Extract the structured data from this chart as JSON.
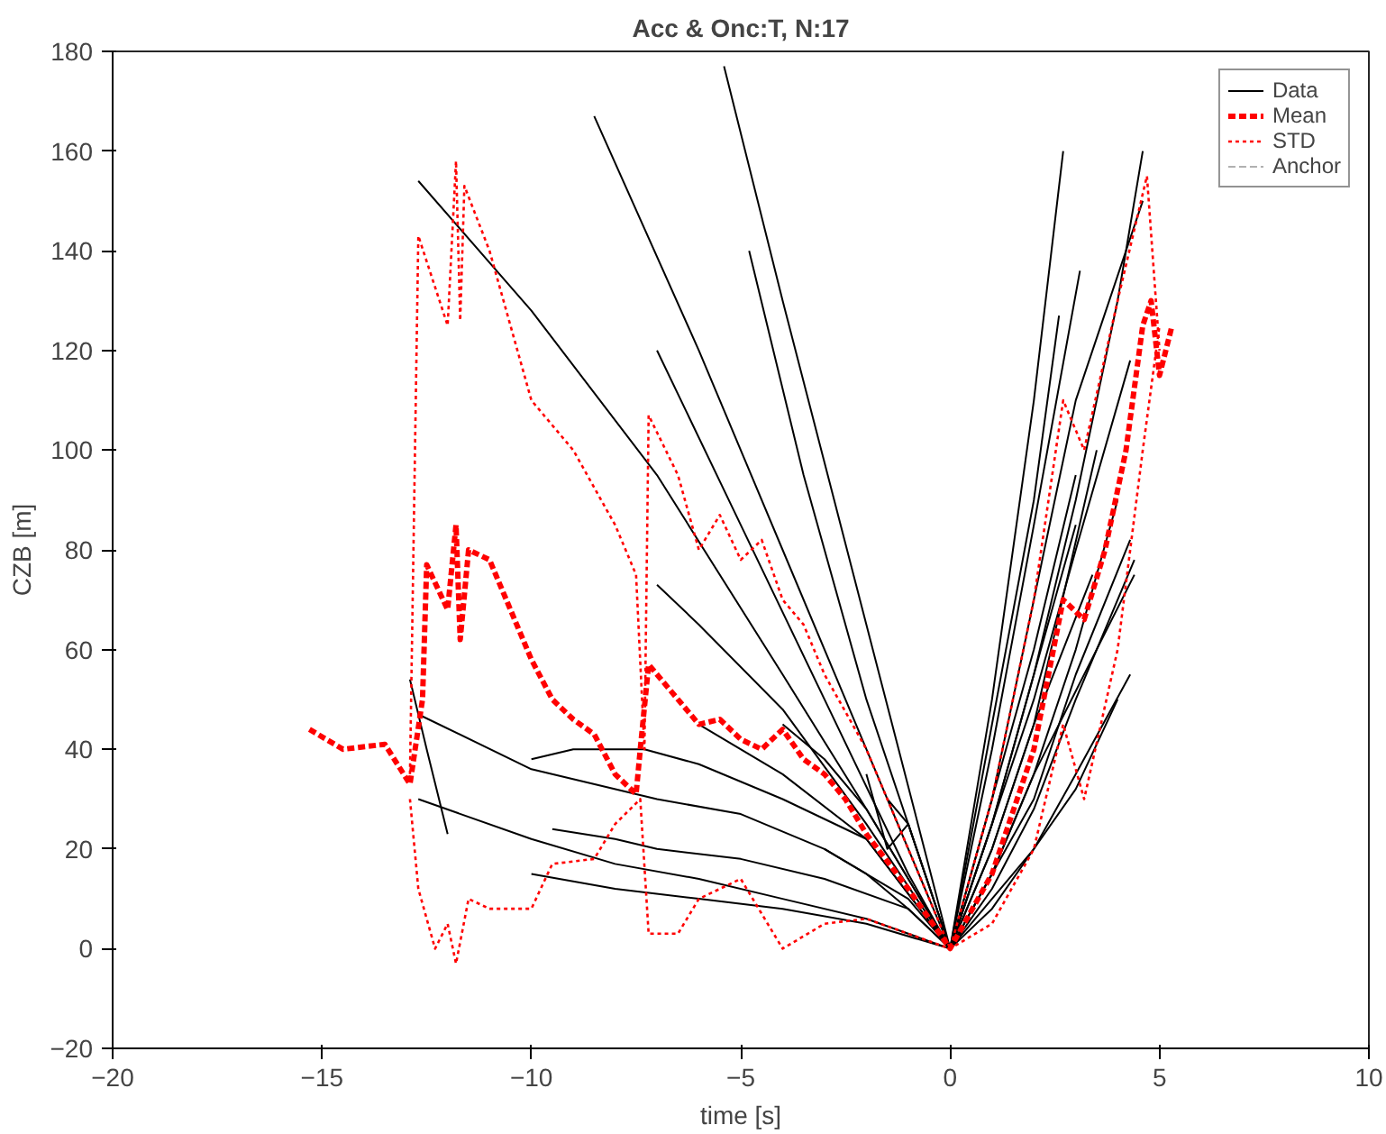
{
  "chart_data": {
    "type": "line",
    "title": "Acc & Onc:T, N:17",
    "xlabel": "time [s]",
    "ylabel": "CZB [m]",
    "xlim": [
      -20,
      10
    ],
    "xticks": [
      -20,
      -15,
      -10,
      -5,
      0,
      5,
      10
    ],
    "ylim": [
      -20,
      180
    ],
    "yticks": [
      -20,
      0,
      20,
      40,
      60,
      80,
      100,
      120,
      140,
      160,
      180
    ],
    "grid": false,
    "legend": "top right",
    "series": [
      {
        "name": "Data",
        "color": "#000000",
        "line_style": "solid",
        "x": [
          -12.7,
          -10,
          -7,
          -4,
          -2,
          0,
          1,
          2,
          2.7
        ],
        "values": [
          154,
          128,
          95,
          55,
          28,
          0,
          50,
          110,
          160
        ]
      },
      {
        "color": "#000000",
        "line_style": "solid",
        "x": [
          -8.5,
          -6,
          -4,
          -2,
          0,
          1,
          2,
          3.1
        ],
        "values": [
          167,
          120,
          80,
          40,
          0,
          40,
          85,
          136
        ]
      },
      {
        "color": "#000000",
        "line_style": "solid",
        "x": [
          -5.4,
          -4,
          -2,
          0,
          1,
          2,
          3,
          4,
          4.6
        ],
        "values": [
          177,
          130,
          65,
          0,
          25,
          55,
          90,
          130,
          160
        ]
      },
      {
        "color": "#000000",
        "line_style": "solid",
        "x": [
          -4.8,
          -3.5,
          -2,
          0,
          1,
          2,
          2.6
        ],
        "values": [
          140,
          95,
          50,
          0,
          45,
          90,
          127
        ]
      },
      {
        "color": "#000000",
        "line_style": "solid",
        "x": [
          -7,
          -5,
          -3,
          -1,
          0,
          1,
          2,
          3,
          4.3
        ],
        "values": [
          120,
          85,
          50,
          15,
          0,
          25,
          50,
          80,
          118
        ]
      },
      {
        "color": "#000000",
        "line_style": "solid",
        "x": [
          -12.9,
          -12.5,
          -12
        ],
        "values": [
          54,
          40,
          23
        ]
      },
      {
        "color": "#000000",
        "line_style": "solid",
        "x": [
          -12.7,
          -10,
          -7,
          -5,
          -3,
          -1,
          0,
          1,
          2,
          3,
          4.3
        ],
        "values": [
          47,
          36,
          30,
          27,
          20,
          10,
          0,
          15,
          30,
          55,
          82
        ]
      },
      {
        "color": "#000000",
        "line_style": "solid",
        "x": [
          -10,
          -9,
          -7.3,
          -6,
          -4,
          -2,
          0,
          1,
          2,
          3,
          4
        ],
        "values": [
          38,
          40,
          40,
          37,
          30,
          22,
          0,
          10,
          20,
          32,
          50
        ]
      },
      {
        "color": "#000000",
        "line_style": "solid",
        "x": [
          -9.5,
          -8,
          -7,
          -5,
          -3,
          -1,
          0,
          1,
          2,
          3,
          4.4
        ],
        "values": [
          24,
          22,
          20,
          18,
          14,
          8,
          0,
          12,
          28,
          50,
          78
        ]
      },
      {
        "color": "#000000",
        "line_style": "solid",
        "x": [
          -12.7,
          -10,
          -8,
          -6,
          -4,
          -2,
          0,
          1,
          2,
          3,
          4
        ],
        "values": [
          30,
          22,
          17,
          14,
          10,
          6,
          0,
          15,
          35,
          60,
          90
        ]
      },
      {
        "color": "#000000",
        "line_style": "solid",
        "x": [
          -7,
          -6,
          -4,
          -2,
          0,
          1,
          2,
          3
        ],
        "values": [
          73,
          65,
          48,
          25,
          0,
          25,
          55,
          85
        ]
      },
      {
        "color": "#000000",
        "line_style": "solid",
        "x": [
          -10,
          -8,
          -6,
          -4,
          -2,
          0,
          1,
          2,
          3.5
        ],
        "values": [
          15,
          12,
          10,
          8,
          5,
          0,
          20,
          45,
          100
        ]
      },
      {
        "color": "#000000",
        "line_style": "solid",
        "x": [
          -4,
          -3,
          -2,
          0,
          1,
          2,
          3
        ],
        "values": [
          45,
          38,
          28,
          0,
          30,
          60,
          95
        ]
      },
      {
        "color": "#000000",
        "line_style": "solid",
        "x": [
          -6,
          -4,
          -2,
          0,
          1,
          2,
          4.4
        ],
        "values": [
          45,
          35,
          22,
          0,
          15,
          35,
          75
        ]
      },
      {
        "color": "#000000",
        "line_style": "solid",
        "x": [
          -2,
          -1.5,
          -1,
          0,
          1,
          2,
          3.4
        ],
        "values": [
          35,
          20,
          25,
          0,
          20,
          45,
          75
        ]
      },
      {
        "color": "#000000",
        "line_style": "solid",
        "x": [
          -3,
          -2,
          -1,
          0,
          1,
          2,
          3,
          4.3
        ],
        "values": [
          20,
          15,
          8,
          0,
          8,
          20,
          35,
          55
        ]
      },
      {
        "color": "#000000",
        "line_style": "solid",
        "x": [
          -1.5,
          -1,
          0,
          1,
          2,
          3,
          4.6
        ],
        "values": [
          30,
          25,
          0,
          30,
          70,
          110,
          150
        ]
      },
      {
        "name": "Mean",
        "color": "#ff0000",
        "line_style": "dashed",
        "x": [
          -15.3,
          -14.5,
          -13.5,
          -12.9,
          -12.6,
          -12.5,
          -12,
          -11.8,
          -11.7,
          -11.5,
          -11,
          -10.5,
          -10,
          -9.5,
          -9,
          -8.5,
          -8,
          -7.5,
          -7.4,
          -7.2,
          -6.5,
          -6,
          -5.5,
          -5,
          -4.5,
          -4,
          -3.5,
          -3,
          -2.5,
          -2,
          -1,
          0,
          1,
          2,
          2.7,
          3.2,
          3.7,
          4.2,
          4.6,
          4.8,
          5,
          5.3
        ],
        "values": [
          44,
          40,
          41,
          33,
          50,
          77,
          68,
          85,
          62,
          80,
          78,
          68,
          58,
          50,
          46,
          43,
          35,
          31,
          40,
          57,
          50,
          45,
          46,
          42,
          40,
          44,
          38,
          35,
          30,
          23,
          12,
          0,
          15,
          40,
          70,
          66,
          80,
          100,
          125,
          130,
          115,
          125
        ]
      },
      {
        "name": "STD",
        "color": "#ff0000",
        "line_style": "dotted",
        "x": [
          -12.9,
          -12.7,
          -12,
          -11.8,
          -11.7,
          -11.6,
          -11,
          -10,
          -9,
          -8,
          -7.5,
          -7.3,
          -7.2,
          -6.5,
          -6,
          -5.5,
          -5,
          -4.5,
          -4,
          -3.5,
          -3,
          -2,
          -1,
          0,
          1,
          2,
          2.7,
          3.2,
          4,
          4.7,
          5
        ],
        "values": [
          35,
          143,
          125,
          158,
          126,
          153,
          140,
          110,
          100,
          85,
          75,
          40,
          107,
          95,
          80,
          87,
          78,
          82,
          70,
          65,
          55,
          40,
          20,
          0,
          30,
          70,
          110,
          100,
          130,
          155,
          120
        ]
      },
      {
        "color": "#ff0000",
        "line_style": "dotted",
        "x": [
          -12.9,
          -12.7,
          -12.3,
          -12,
          -11.8,
          -11.5,
          -11,
          -10,
          -9.5,
          -8.5,
          -8,
          -7.4,
          -7.2,
          -6.5,
          -6,
          -5,
          -4,
          -3,
          -2,
          -1,
          0,
          1,
          2,
          2.7,
          3.2,
          4,
          4.6,
          5
        ],
        "values": [
          30,
          12,
          0,
          5,
          -3,
          10,
          8,
          8,
          17,
          18,
          25,
          30,
          3,
          3,
          10,
          14,
          0,
          5,
          6,
          3,
          0,
          5,
          20,
          45,
          30,
          60,
          100,
          125
        ]
      },
      {
        "name": "Anchor",
        "color": "#b0b0b0",
        "line_style": "dashed",
        "values": [
          null
        ]
      }
    ]
  }
}
